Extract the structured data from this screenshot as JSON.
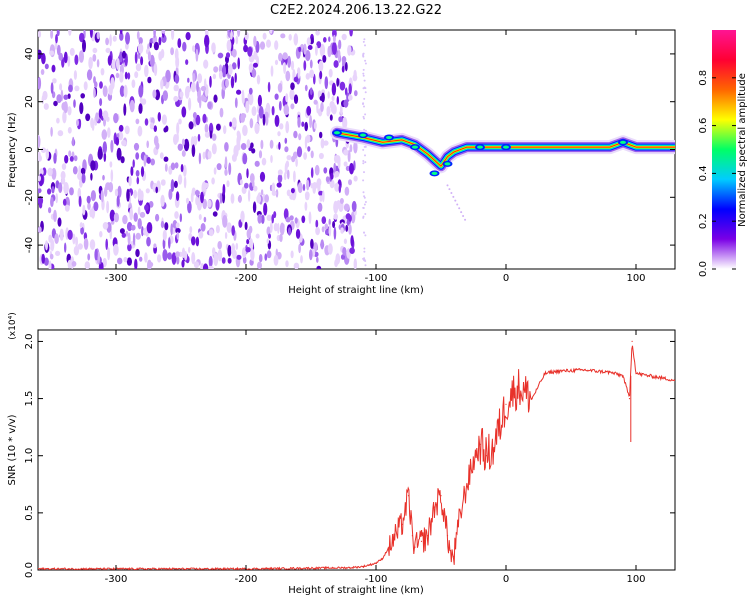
{
  "title": "C2E2.2024.206.13.22.G22",
  "chart_data": [
    {
      "type": "heatmap",
      "xlabel": "Height of straight line (km)",
      "ylabel": "Frequency (Hz)",
      "xlim": [
        -360,
        130
      ],
      "ylim": [
        -50,
        50
      ],
      "xticks": [
        -300,
        -200,
        -100,
        0,
        100
      ],
      "yticks": [
        -40,
        -20,
        0,
        20,
        40
      ],
      "colorbar": {
        "label": "Normalized spectral amplitude",
        "range": [
          0,
          1
        ],
        "ticks": [
          "0.0",
          "0.2",
          "0.4",
          "0.6",
          "0.8"
        ],
        "colormap": [
          "#ffffff",
          "#7a00e6",
          "#0000ff",
          "#00ccff",
          "#00ff66",
          "#ffff00",
          "#ff6600",
          "#ff0033",
          "#ff1493"
        ]
      },
      "signal_ridge": {
        "description_points_x": [
          -130,
          -110,
          -95,
          -80,
          -70,
          -60,
          -50,
          -45,
          -40,
          -30,
          -20,
          0,
          40,
          80,
          90,
          100,
          130
        ],
        "frequency": [
          7,
          5,
          3,
          4,
          2,
          -2,
          -7,
          -3,
          -1,
          1,
          1,
          1,
          1,
          1,
          3,
          1,
          1
        ]
      },
      "noise_region_x": [
        -360,
        -120
      ]
    },
    {
      "type": "line",
      "xlabel": "Height of straight line (km)",
      "ylabel": "SNR (10 * v/v)",
      "yscale_label": "(x10⁴)",
      "xlim": [
        -360,
        130
      ],
      "ylim": [
        0,
        2.1
      ],
      "xticks": [
        -300,
        -200,
        -100,
        0,
        100
      ],
      "yticks": [
        "0.0",
        "0.5",
        "1.0",
        "1.5",
        "2.0"
      ],
      "series": [
        {
          "color": "#e8312a",
          "x": [
            -360,
            -300,
            -200,
            -120,
            -110,
            -100,
            -95,
            -90,
            -80,
            -75,
            -72,
            -70,
            -65,
            -60,
            -55,
            -50,
            -45,
            -42,
            -40,
            -35,
            -30,
            -25,
            -20,
            -15,
            -10,
            -5,
            0,
            5,
            10,
            20,
            30,
            40,
            60,
            80,
            90,
            95,
            97,
            100,
            110,
            120,
            130
          ],
          "y": [
            0.01,
            0.01,
            0.01,
            0.02,
            0.03,
            0.06,
            0.1,
            0.2,
            0.4,
            0.65,
            0.3,
            0.2,
            0.25,
            0.3,
            0.55,
            0.65,
            0.3,
            0.1,
            0.12,
            0.5,
            0.75,
            0.95,
            1.1,
            1.0,
            1.05,
            1.25,
            1.45,
            1.55,
            1.6,
            1.5,
            1.72,
            1.74,
            1.75,
            1.73,
            1.7,
            1.5,
            2.0,
            1.72,
            1.7,
            1.68,
            1.66
          ]
        }
      ]
    }
  ]
}
